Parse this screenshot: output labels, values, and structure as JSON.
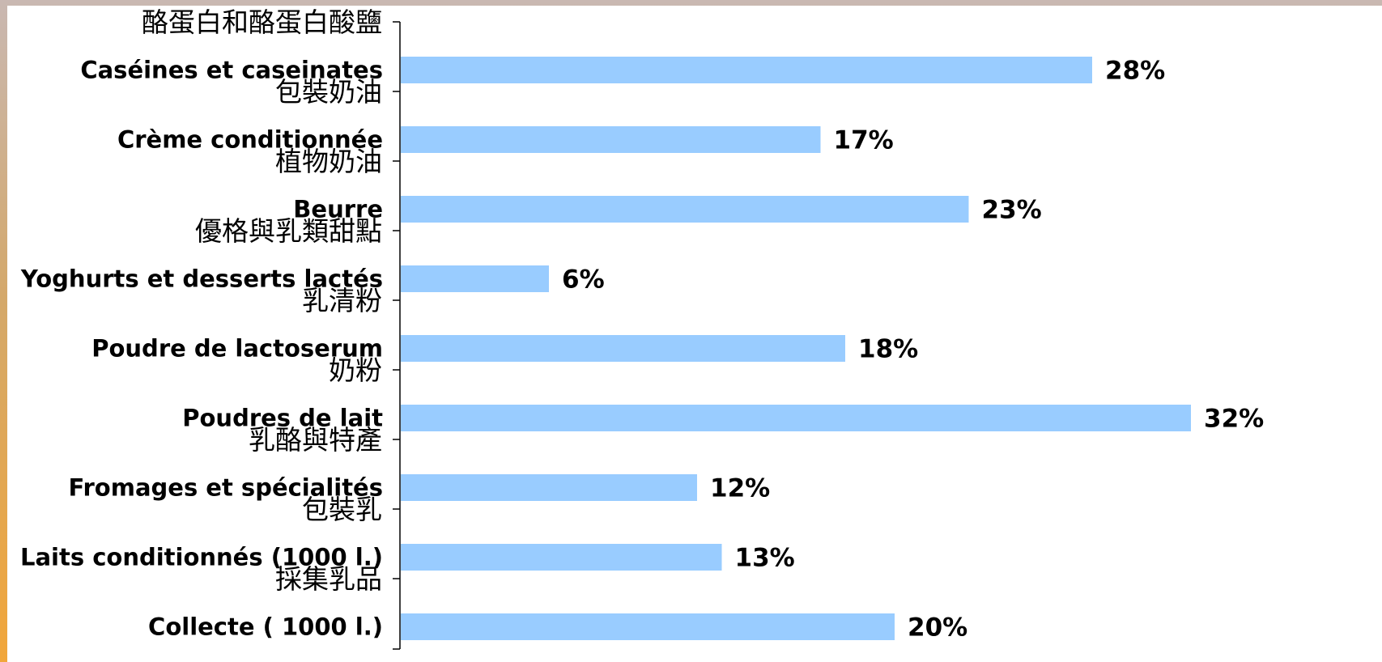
{
  "chart_data": {
    "type": "bar",
    "orientation": "horizontal",
    "categories": [
      "Caséines et caseinates",
      "Crème conditionnée",
      "Beurre",
      "Yoghurts et desserts lactés",
      "Poudre de lactoserum",
      "Poudres de lait",
      "Fromages et spécialités",
      "Laits conditionnés (1000 l.)",
      "Collecte ( 1000 l.)"
    ],
    "categories_zh": [
      "酪蛋白和酪蛋白酸鹽",
      "包裝奶油",
      "植物奶油",
      "優格與乳類甜點",
      "乳清粉",
      "奶粉",
      "乳酪與特產",
      "包裝乳",
      "採集乳品"
    ],
    "values": [
      28,
      17,
      23,
      6,
      18,
      32,
      12,
      13,
      20
    ],
    "value_labels": [
      "28%",
      "17%",
      "23%",
      "6%",
      "18%",
      "32%",
      "12%",
      "13%",
      "20%"
    ],
    "unit": "%",
    "xlim": [
      0,
      32
    ],
    "bar_color": "#99ccff",
    "grid": false,
    "legend": "none"
  }
}
